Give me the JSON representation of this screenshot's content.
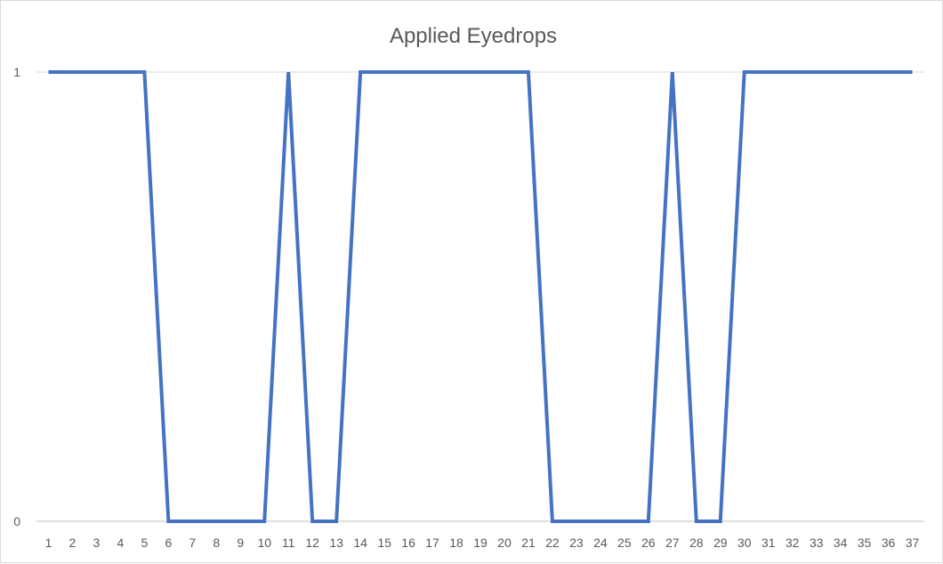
{
  "chart_data": {
    "type": "line",
    "title": "Applied Eyedrops",
    "xlabel": "",
    "ylabel": "",
    "x": [
      1,
      2,
      3,
      4,
      5,
      6,
      7,
      8,
      9,
      10,
      11,
      12,
      13,
      14,
      15,
      16,
      17,
      18,
      19,
      20,
      21,
      22,
      23,
      24,
      25,
      26,
      27,
      28,
      29,
      30,
      31,
      32,
      33,
      34,
      35,
      36,
      37
    ],
    "series": [
      {
        "values": [
          1,
          1,
          1,
          1,
          1,
          0,
          0,
          0,
          0,
          0,
          1,
          0,
          0,
          1,
          1,
          1,
          1,
          1,
          1,
          1,
          1,
          0,
          0,
          0,
          0,
          0,
          1,
          0,
          0,
          1,
          1,
          1,
          1,
          1,
          1,
          1,
          1
        ]
      }
    ],
    "yticks": [
      0,
      1
    ],
    "ylim": [
      0,
      1
    ],
    "grid": true,
    "legend": "none",
    "colors": {
      "line": "#4472C4",
      "grid": "#d9d9d9",
      "axis": "#bfbfbf",
      "text": "#595959"
    }
  }
}
